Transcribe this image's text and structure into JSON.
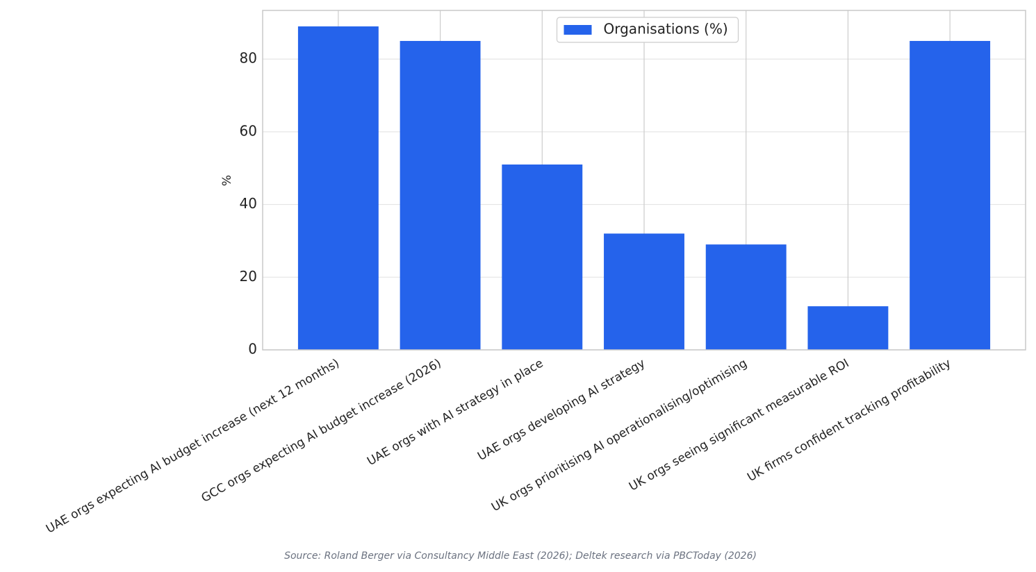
{
  "chart_data": {
    "type": "bar",
    "categories": [
      "UAE orgs expecting AI budget increase (next 12 months)",
      "GCC orgs expecting AI budget increase (2026)",
      "UAE orgs with AI strategy in place",
      "UAE orgs developing AI strategy",
      "UK orgs prioritising AI operationalising/optimising",
      "UK orgs seeing significant measurable ROI",
      "UK firms confident tracking profitability"
    ],
    "series": [
      {
        "name": "Organisations (%)",
        "color": "#2563eb",
        "values": [
          89,
          85,
          51,
          32,
          29,
          12,
          85
        ]
      }
    ],
    "y_label": "%",
    "ylim": [
      0,
      93.4
    ],
    "yticks": [
      0,
      20,
      40,
      60,
      80
    ],
    "grid": true,
    "legend": "upper center",
    "source": "Source: Roland Berger via Consultancy Middle East (2026); Deltek research via PBCToday (2026)"
  }
}
